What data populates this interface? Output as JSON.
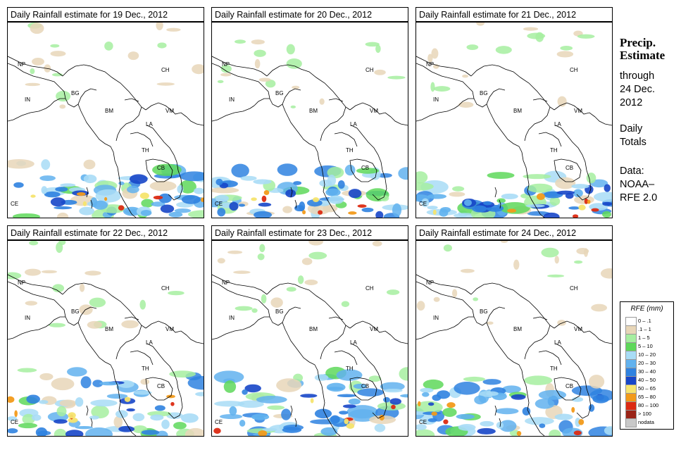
{
  "panels": [
    {
      "title": "Daily Rainfall estimate for  19 Dec., 2012",
      "seed": 11
    },
    {
      "title": "Daily Rainfall estimate for  20 Dec., 2012",
      "seed": 23
    },
    {
      "title": "Daily Rainfall estimate for  21 Dec., 2012",
      "seed": 37
    },
    {
      "title": "Daily Rainfall estimate for  22 Dec., 2012",
      "seed": 41
    },
    {
      "title": "Daily Rainfall estimate for  23 Dec., 2012",
      "seed": 53
    },
    {
      "title": "Daily Rainfall estimate for  24 Dec., 2012",
      "seed": 67
    }
  ],
  "country_labels": [
    "NP",
    "IN",
    "BG",
    "BM",
    "CH",
    "VM",
    "LA",
    "TH",
    "CB",
    "CE"
  ],
  "sidebar": {
    "heading_line1": "Precip.",
    "heading_line2": "Estimate",
    "through": "through",
    "date_line1": "24 Dec.",
    "date_line2": "2012",
    "totals_line1": "Daily",
    "totals_line2": "Totals",
    "data_line1": "Data:",
    "data_line2": "NOAA–",
    "data_line3": "RFE 2.0"
  },
  "legend": {
    "title": "RFE (mm)",
    "items": [
      {
        "label": "0 – .1",
        "color": "#ffffff"
      },
      {
        "label": ".1 – 1",
        "color": "#e8d6b8"
      },
      {
        "label": "1 – 5",
        "color": "#a6eea0"
      },
      {
        "label": "5 – 10",
        "color": "#5ed85a"
      },
      {
        "label": "10 – 20",
        "color": "#a8dcf6"
      },
      {
        "label": "20 – 30",
        "color": "#62b2ee"
      },
      {
        "label": "30 – 40",
        "color": "#2f82e0"
      },
      {
        "label": "40 – 50",
        "color": "#1746c8"
      },
      {
        "label": "50 – 65",
        "color": "#f6e46e"
      },
      {
        "label": "65 – 80",
        "color": "#f29a1a"
      },
      {
        "label": "80 – 100",
        "color": "#dc2a12"
      },
      {
        "label": "> 100",
        "color": "#9a2418"
      },
      {
        "label": "nodata",
        "color": "#c8c8c8"
      }
    ]
  }
}
